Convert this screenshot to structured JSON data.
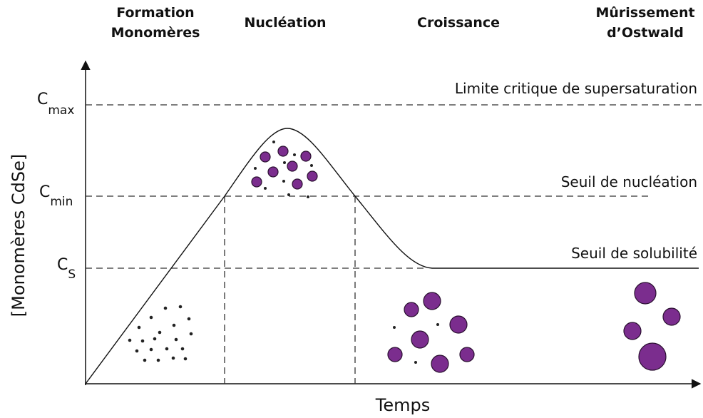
{
  "phases": [
    {
      "lines": [
        "Formation",
        "Monomères"
      ]
    },
    {
      "lines": [
        "Nucléation"
      ]
    },
    {
      "lines": [
        "Croissance"
      ]
    },
    {
      "lines": [
        "Mûrissement",
        "d’Ostwald"
      ]
    }
  ],
  "axes": {
    "y_label": "[Monomères CdSe]",
    "x_label": "Temps"
  },
  "levels": [
    {
      "base": "C",
      "sub": "max",
      "label": "Limite critique de supersaturation"
    },
    {
      "base": "C",
      "sub": "min",
      "label": "Seuil de nucléation"
    },
    {
      "base": "C",
      "sub": "S",
      "label": "Seuil de solubilité"
    }
  ]
}
